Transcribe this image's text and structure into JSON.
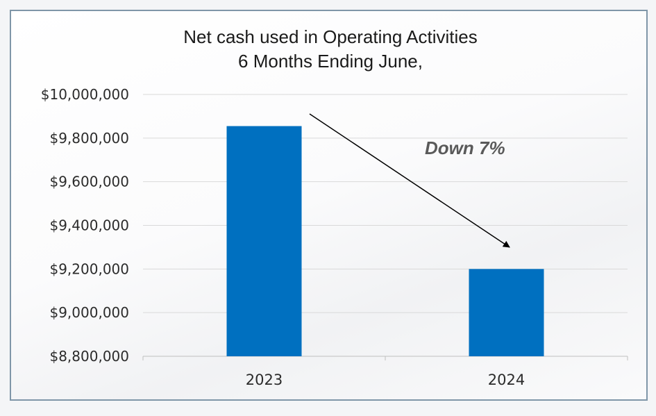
{
  "chart_data": {
    "type": "bar",
    "title": "Net cash used in Operating Activities",
    "subtitle": "6 Months Ending June,",
    "categories": [
      "2023",
      "2024"
    ],
    "values": [
      9855000,
      9200000
    ],
    "ylim": [
      8800000,
      10000000
    ],
    "yticks": [
      10000000,
      9800000,
      9600000,
      9400000,
      9200000,
      9000000,
      8800000
    ],
    "ytick_labels": [
      "$10,000,000",
      "$9,800,000",
      "$9,600,000",
      "$9,400,000",
      "$9,200,000",
      "$9,000,000",
      "$8,800,000"
    ],
    "xlabel": "",
    "ylabel": "",
    "grid": true,
    "legend": "none",
    "annotation": {
      "text": "Down 7%",
      "arrow": "from 2023 bar toward 2024 bar"
    },
    "colors": {
      "bar": "#0070c0",
      "grid": "#d9d9d9",
      "frame": "#7f96a8",
      "annotation": "#5a5a5a"
    }
  }
}
